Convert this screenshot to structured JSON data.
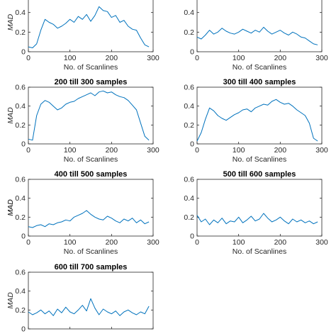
{
  "chart_data": [
    {
      "type": "line",
      "title": "",
      "xlabel": "No. of Scanlines",
      "ylabel": "MAD",
      "xlim": [
        0,
        300
      ],
      "ylim": [
        0,
        0.6
      ],
      "x_ticks": [
        "0",
        "100",
        "200",
        "300"
      ],
      "y_ticks": [
        "0",
        "0.2",
        "0.4",
        "0.6"
      ],
      "visible_y_ticks": [
        "0",
        "0.2",
        "0.4"
      ],
      "series": [
        {
          "color": "#0072BD",
          "x": [
            0,
            10,
            20,
            30,
            40,
            50,
            60,
            70,
            80,
            90,
            100,
            110,
            120,
            130,
            140,
            150,
            160,
            170,
            180,
            190,
            200,
            210,
            220,
            230,
            240,
            250,
            260,
            270,
            280,
            290
          ],
          "y": [
            0.05,
            0.04,
            0.08,
            0.22,
            0.33,
            0.3,
            0.28,
            0.24,
            0.26,
            0.29,
            0.33,
            0.3,
            0.36,
            0.33,
            0.38,
            0.31,
            0.37,
            0.46,
            0.42,
            0.41,
            0.35,
            0.37,
            0.3,
            0.32,
            0.26,
            0.23,
            0.22,
            0.14,
            0.07,
            0.05
          ]
        }
      ]
    },
    {
      "type": "line",
      "title": "",
      "xlabel": "No. of Scanlines",
      "ylabel": "",
      "xlim": [
        0,
        300
      ],
      "ylim": [
        0,
        0.6
      ],
      "x_ticks": [
        "0",
        "100",
        "200",
        "300"
      ],
      "y_ticks": [
        "0",
        "0.2",
        "0.4",
        "0.6"
      ],
      "visible_y_ticks": [
        "0",
        "0.2",
        "0.4"
      ],
      "series": [
        {
          "color": "#0072BD",
          "x": [
            0,
            10,
            20,
            30,
            40,
            50,
            60,
            70,
            80,
            90,
            100,
            110,
            120,
            130,
            140,
            150,
            160,
            170,
            180,
            190,
            200,
            210,
            220,
            230,
            240,
            250,
            260,
            270,
            280,
            290
          ],
          "y": [
            0.15,
            0.13,
            0.17,
            0.22,
            0.18,
            0.2,
            0.24,
            0.21,
            0.19,
            0.18,
            0.2,
            0.23,
            0.21,
            0.19,
            0.22,
            0.2,
            0.25,
            0.21,
            0.18,
            0.2,
            0.22,
            0.19,
            0.17,
            0.2,
            0.18,
            0.15,
            0.14,
            0.11,
            0.08,
            0.07
          ]
        }
      ]
    },
    {
      "type": "line",
      "title": "200 till 300 samples",
      "xlabel": "No. of Scanlines",
      "ylabel": "MAD",
      "xlim": [
        0,
        300
      ],
      "ylim": [
        0,
        0.6
      ],
      "x_ticks": [
        "0",
        "100",
        "200",
        "300"
      ],
      "y_ticks": [
        "0",
        "0.2",
        "0.4",
        "0.6"
      ],
      "series": [
        {
          "color": "#0072BD",
          "x": [
            0,
            10,
            20,
            30,
            40,
            50,
            60,
            70,
            80,
            90,
            100,
            110,
            120,
            130,
            140,
            150,
            160,
            170,
            180,
            190,
            200,
            210,
            220,
            230,
            240,
            250,
            260,
            270,
            280,
            290
          ],
          "y": [
            0.05,
            0.04,
            0.3,
            0.42,
            0.46,
            0.44,
            0.4,
            0.36,
            0.38,
            0.42,
            0.44,
            0.45,
            0.48,
            0.5,
            0.52,
            0.54,
            0.51,
            0.55,
            0.56,
            0.54,
            0.55,
            0.52,
            0.5,
            0.49,
            0.46,
            0.41,
            0.36,
            0.22,
            0.08,
            0.04
          ]
        }
      ]
    },
    {
      "type": "line",
      "title": "300 till 400 samples",
      "xlabel": "No. of Scanlines",
      "ylabel": "",
      "xlim": [
        0,
        300
      ],
      "ylim": [
        0,
        0.6
      ],
      "x_ticks": [
        "0",
        "100",
        "200",
        "300"
      ],
      "y_ticks": [
        "0",
        "0.2",
        "0.4",
        "0.6"
      ],
      "series": [
        {
          "color": "#0072BD",
          "x": [
            0,
            10,
            20,
            30,
            40,
            50,
            60,
            70,
            80,
            90,
            100,
            110,
            120,
            130,
            140,
            150,
            160,
            170,
            180,
            190,
            200,
            210,
            220,
            230,
            240,
            250,
            260,
            270,
            280,
            290
          ],
          "y": [
            0.03,
            0.12,
            0.26,
            0.38,
            0.35,
            0.3,
            0.27,
            0.25,
            0.28,
            0.31,
            0.33,
            0.36,
            0.37,
            0.34,
            0.38,
            0.4,
            0.42,
            0.41,
            0.45,
            0.47,
            0.44,
            0.42,
            0.43,
            0.4,
            0.36,
            0.33,
            0.3,
            0.22,
            0.06,
            0.03
          ]
        }
      ]
    },
    {
      "type": "line",
      "title": "400 till 500 samples",
      "xlabel": "No. of Scanlines",
      "ylabel": "MAD",
      "xlim": [
        0,
        300
      ],
      "ylim": [
        0,
        0.6
      ],
      "x_ticks": [
        "0",
        "100",
        "200",
        "300"
      ],
      "y_ticks": [
        "0",
        "0.2",
        "0.4",
        "0.6"
      ],
      "series": [
        {
          "color": "#0072BD",
          "x": [
            0,
            10,
            20,
            30,
            40,
            50,
            60,
            70,
            80,
            90,
            100,
            110,
            120,
            130,
            140,
            150,
            160,
            170,
            180,
            190,
            200,
            210,
            220,
            230,
            240,
            250,
            260,
            270,
            280,
            290
          ],
          "y": [
            0.1,
            0.09,
            0.11,
            0.12,
            0.1,
            0.13,
            0.12,
            0.14,
            0.15,
            0.17,
            0.16,
            0.2,
            0.22,
            0.24,
            0.27,
            0.23,
            0.2,
            0.18,
            0.17,
            0.21,
            0.19,
            0.16,
            0.14,
            0.18,
            0.16,
            0.19,
            0.14,
            0.17,
            0.13,
            0.15
          ]
        }
      ]
    },
    {
      "type": "line",
      "title": "500 till 600 samples",
      "xlabel": "No. of Scanlines",
      "ylabel": "MAD",
      "xlim": [
        0,
        300
      ],
      "ylim": [
        0,
        0.6
      ],
      "x_ticks": [
        "0",
        "100",
        "200",
        "300"
      ],
      "y_ticks": [
        "0",
        "0.2",
        "0.4",
        "0.6"
      ],
      "series": [
        {
          "color": "#0072BD",
          "x": [
            0,
            10,
            20,
            30,
            40,
            50,
            60,
            70,
            80,
            90,
            100,
            110,
            120,
            130,
            140,
            150,
            160,
            170,
            180,
            190,
            200,
            210,
            220,
            230,
            240,
            250,
            260,
            270,
            280,
            290
          ],
          "y": [
            0.22,
            0.15,
            0.18,
            0.12,
            0.17,
            0.14,
            0.19,
            0.13,
            0.16,
            0.15,
            0.2,
            0.14,
            0.17,
            0.21,
            0.16,
            0.18,
            0.24,
            0.19,
            0.15,
            0.17,
            0.2,
            0.16,
            0.13,
            0.18,
            0.15,
            0.17,
            0.14,
            0.16,
            0.13,
            0.15
          ]
        }
      ]
    },
    {
      "type": "line",
      "title": "600 till 700 samples",
      "xlabel": "",
      "ylabel": "MAD",
      "xlim": [
        0,
        300
      ],
      "ylim": [
        0,
        0.6
      ],
      "x_ticks": [
        "0",
        "100",
        "200",
        "300"
      ],
      "y_ticks": [
        "0",
        "0.2",
        "0.4",
        "0.6"
      ],
      "visible_x_ticks": [],
      "series": [
        {
          "color": "#0072BD",
          "x": [
            0,
            10,
            20,
            30,
            40,
            50,
            60,
            70,
            80,
            90,
            100,
            110,
            120,
            130,
            140,
            150,
            160,
            170,
            180,
            190,
            200,
            210,
            220,
            230,
            240,
            250,
            260,
            270,
            280,
            290
          ],
          "y": [
            0.18,
            0.15,
            0.17,
            0.2,
            0.16,
            0.19,
            0.14,
            0.21,
            0.17,
            0.23,
            0.18,
            0.16,
            0.2,
            0.25,
            0.19,
            0.32,
            0.22,
            0.15,
            0.21,
            0.18,
            0.16,
            0.19,
            0.14,
            0.18,
            0.2,
            0.17,
            0.15,
            0.18,
            0.16,
            0.24
          ]
        }
      ]
    }
  ]
}
